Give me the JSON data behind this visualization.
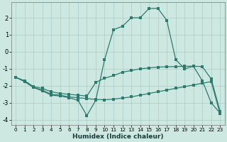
{
  "xlabel": "Humidex (Indice chaleur)",
  "bg_color": "#cce8e0",
  "line_color": "#2d7a6e",
  "grid_color": "#aacccc",
  "xlim": [
    -0.5,
    23.5
  ],
  "ylim": [
    -4.3,
    2.9
  ],
  "xticks": [
    0,
    1,
    2,
    3,
    4,
    5,
    6,
    7,
    8,
    9,
    10,
    11,
    12,
    13,
    14,
    15,
    16,
    17,
    18,
    19,
    20,
    21,
    22,
    23
  ],
  "yticks": [
    -4,
    -3,
    -2,
    -1,
    0,
    1,
    2
  ],
  "curve1_x": [
    0,
    1,
    2,
    3,
    4,
    5,
    6,
    7,
    8,
    9,
    10,
    11,
    12,
    13,
    14,
    15,
    16,
    17,
    18,
    19,
    20,
    21,
    22,
    23
  ],
  "curve1_y": [
    -1.5,
    -1.7,
    -2.05,
    -2.15,
    -2.35,
    -2.45,
    -2.5,
    -2.55,
    -2.6,
    -1.8,
    -1.55,
    -1.4,
    -1.2,
    -1.1,
    -1.0,
    -0.95,
    -0.9,
    -0.88,
    -0.87,
    -0.85,
    -0.85,
    -0.87,
    -1.6,
    -3.5
  ],
  "curve2_x": [
    0,
    1,
    2,
    3,
    4,
    5,
    6,
    7,
    8,
    9,
    10,
    11,
    12,
    13,
    14,
    15,
    16,
    17,
    18,
    19,
    20,
    21,
    22,
    23
  ],
  "curve2_y": [
    -1.5,
    -1.75,
    -2.1,
    -2.25,
    -2.5,
    -2.55,
    -2.65,
    -2.7,
    -2.75,
    -2.8,
    -2.82,
    -2.78,
    -2.72,
    -2.65,
    -2.55,
    -2.45,
    -2.35,
    -2.25,
    -2.15,
    -2.05,
    -1.95,
    -1.85,
    -1.75,
    -3.65
  ],
  "curve3_x": [
    0,
    1,
    2,
    3,
    4,
    5,
    6,
    7,
    8,
    9,
    10,
    11,
    12,
    13,
    14,
    15,
    16,
    17,
    18,
    19,
    20,
    21,
    22,
    23
  ],
  "curve3_y": [
    -1.5,
    -1.75,
    -2.1,
    -2.3,
    -2.55,
    -2.6,
    -2.7,
    -2.85,
    -3.75,
    -2.85,
    -0.45,
    1.3,
    1.5,
    2.0,
    2.0,
    2.55,
    2.55,
    1.85,
    -0.45,
    -1.0,
    -0.85,
    -1.7,
    -3.0,
    -3.6
  ]
}
